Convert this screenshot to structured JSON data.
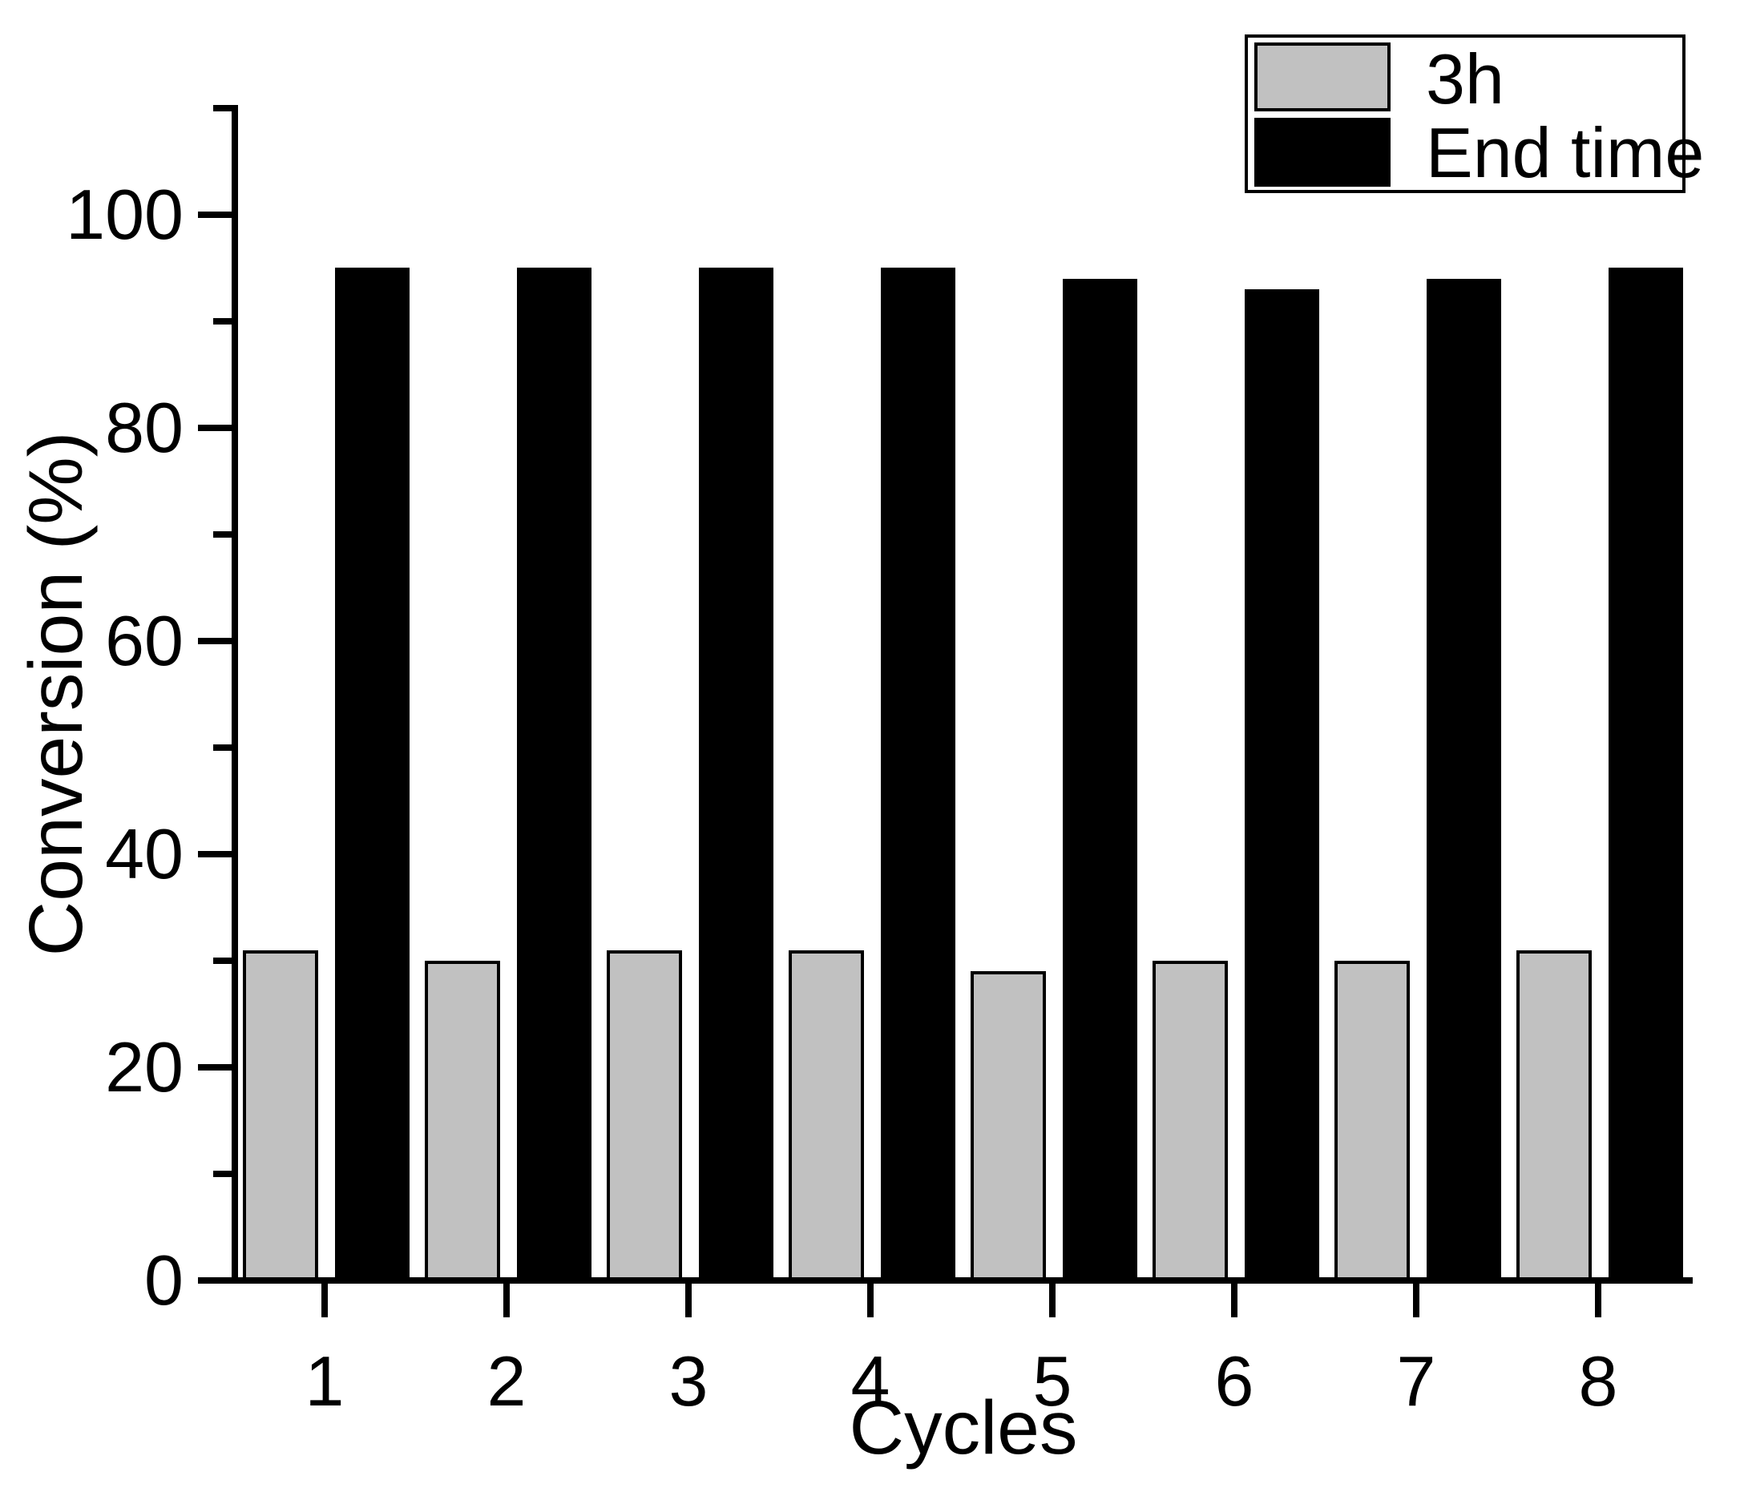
{
  "chart_data": {
    "type": "bar",
    "title": "",
    "xlabel": "Cycles",
    "ylabel": "Conversion (%)",
    "categories": [
      "1",
      "2",
      "3",
      "4",
      "5",
      "6",
      "7",
      "8"
    ],
    "series": [
      {
        "name": "3h",
        "color": "#c1c1c1",
        "border": "#000000",
        "values": [
          31,
          30,
          31,
          31,
          29,
          30,
          30,
          31
        ]
      },
      {
        "name": "End time",
        "color": "#000000",
        "border": "#000000",
        "values": [
          95,
          95,
          95,
          95,
          94,
          93,
          94,
          95
        ]
      }
    ],
    "ylim": [
      0,
      110
    ],
    "y_major_ticks": [
      0,
      20,
      40,
      60,
      80,
      100
    ],
    "y_minor_ticks": [
      10,
      30,
      50,
      70,
      90,
      110
    ],
    "grid": false,
    "legend_position": "top-right",
    "background_color": "#ffffff",
    "axis_color": "#000000"
  }
}
